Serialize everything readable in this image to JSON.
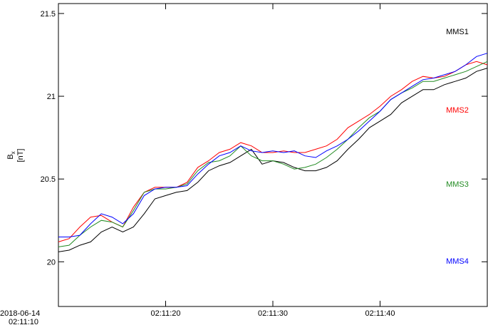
{
  "chart_data": {
    "type": "line",
    "y_label": {
      "symbol": "B",
      "subscript": "x",
      "unit": "[nT]"
    },
    "x_start_date": "2018-06-14",
    "x": [
      0,
      1,
      2,
      3,
      4,
      5,
      6,
      7,
      8,
      9,
      10,
      11,
      12,
      13,
      14,
      15,
      16,
      17,
      18,
      19,
      20,
      21,
      22,
      23,
      24,
      25,
      26,
      27,
      28,
      29,
      30,
      31,
      32,
      33,
      34,
      35,
      36,
      37,
      38,
      39,
      40
    ],
    "xlim": [
      0,
      40
    ],
    "xticks": [
      {
        "value": 0,
        "label": "02:11:10"
      },
      {
        "value": 10,
        "label": "02:11:20"
      },
      {
        "value": 20,
        "label": "02:11:30"
      },
      {
        "value": 30,
        "label": "02:11:40"
      }
    ],
    "ylim": [
      19.73,
      21.56
    ],
    "yticks": [
      20,
      20.5,
      21,
      21.5
    ],
    "series": [
      {
        "name": "MMS1",
        "color": "#000000",
        "values": [
          20.06,
          20.07,
          20.1,
          20.12,
          20.18,
          20.21,
          20.18,
          20.21,
          20.29,
          20.38,
          20.4,
          20.42,
          20.43,
          20.48,
          20.55,
          20.58,
          20.6,
          20.64,
          20.68,
          20.59,
          20.61,
          20.6,
          20.57,
          20.55,
          20.55,
          20.57,
          20.61,
          20.68,
          20.74,
          20.81,
          20.85,
          20.89,
          20.96,
          21.0,
          21.04,
          21.04,
          21.07,
          21.09,
          21.11,
          21.15,
          21.17
        ]
      },
      {
        "name": "MMS2",
        "color": "#ff0000",
        "values": [
          20.12,
          20.14,
          20.21,
          20.27,
          20.28,
          20.24,
          20.21,
          20.33,
          20.42,
          20.45,
          20.45,
          20.45,
          20.48,
          20.57,
          20.61,
          20.66,
          20.68,
          20.72,
          20.7,
          20.66,
          20.66,
          20.67,
          20.66,
          20.66,
          20.68,
          20.7,
          20.74,
          20.81,
          20.85,
          20.89,
          20.94,
          21.0,
          21.04,
          21.09,
          21.12,
          21.11,
          21.12,
          21.15,
          21.19,
          21.21,
          21.19
        ]
      },
      {
        "name": "MMS3",
        "color": "#228b22",
        "values": [
          20.09,
          20.1,
          20.16,
          20.21,
          20.25,
          20.24,
          20.21,
          20.31,
          20.42,
          20.44,
          20.44,
          20.45,
          20.47,
          20.55,
          20.6,
          20.61,
          20.64,
          20.7,
          20.64,
          20.61,
          20.61,
          20.59,
          20.56,
          20.57,
          20.59,
          20.63,
          20.68,
          20.74,
          20.81,
          20.87,
          20.91,
          20.98,
          21.02,
          21.05,
          21.09,
          21.09,
          21.11,
          21.13,
          21.15,
          21.18,
          21.21
        ]
      },
      {
        "name": "MMS4",
        "color": "#0000ff",
        "values": [
          20.15,
          20.15,
          20.16,
          20.23,
          20.29,
          20.27,
          20.23,
          20.29,
          20.4,
          20.44,
          20.45,
          20.45,
          20.46,
          20.53,
          20.59,
          20.64,
          20.66,
          20.7,
          20.67,
          20.66,
          20.67,
          20.66,
          20.67,
          20.64,
          20.63,
          20.67,
          20.7,
          20.74,
          20.79,
          20.85,
          20.91,
          20.98,
          21.02,
          21.06,
          21.1,
          21.11,
          21.13,
          21.15,
          21.19,
          21.24,
          21.26
        ]
      }
    ]
  }
}
